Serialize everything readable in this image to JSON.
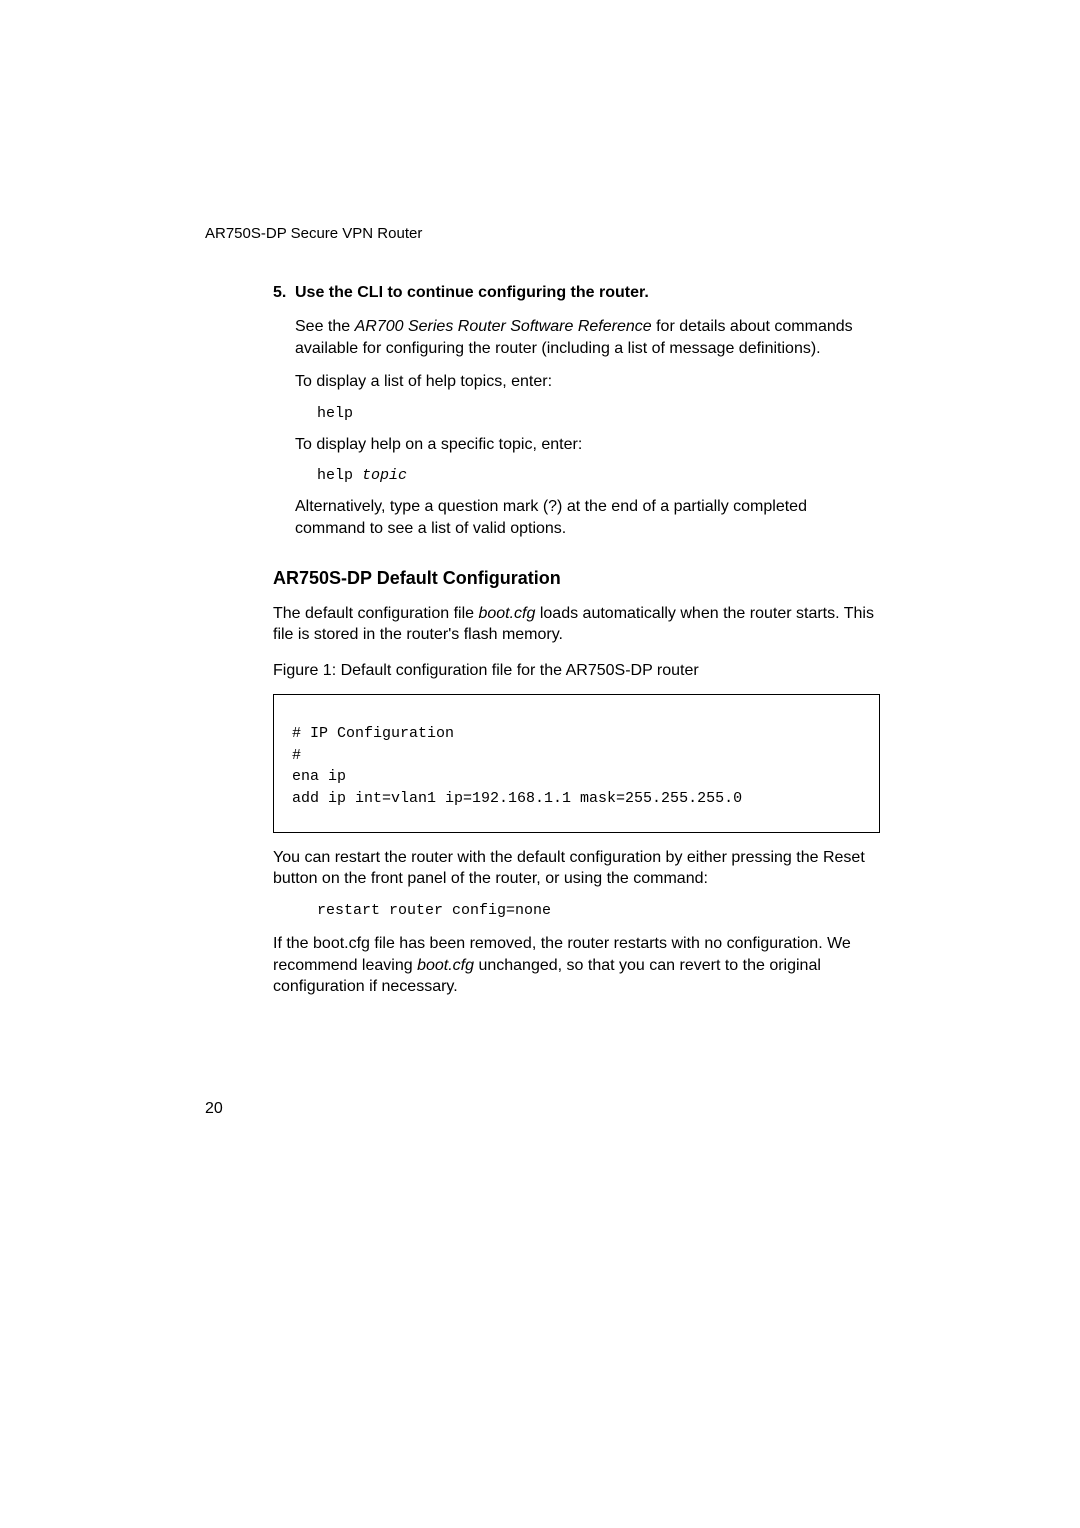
{
  "page": {
    "background_color": "#ffffff",
    "text_color": "#000000",
    "body_fontsize": 16,
    "code_fontsize": 15,
    "heading_fontsize": 18,
    "header_fontsize": 15,
    "font_family_body": "Gill Sans",
    "font_family_code": "Courier New"
  },
  "running_header": "AR750S-DP Secure VPN Router",
  "step": {
    "number": "5.",
    "title": "Use the CLI to continue configuring the router.",
    "para1_pre": "See the ",
    "para1_italic": "AR700 Series Router Software Reference",
    "para1_post": " for details about commands available for configuring the router (including a list of message definitions).",
    "para2": "To display a list of help topics, enter:",
    "code1": "help",
    "para3": "To display help on a specific topic, enter:",
    "code2_plain": "help ",
    "code2_italic": "topic",
    "para4": "Alternatively, type a question mark (?) at the end of a partially completed command to see a list of valid options."
  },
  "section": {
    "heading": "AR750S-DP Default Configuration",
    "para1_pre": "The default configuration file ",
    "para1_italic": "boot.cfg",
    "para1_post": " loads automatically when the router starts. This file is stored in the router's flash memory.",
    "figure_caption": "Figure 1: Default configuration file for the AR750S-DP router",
    "figure_code": "# IP Configuration\n#\nena ip\nadd ip int=vlan1 ip=192.168.1.1 mask=255.255.255.0",
    "figure_box": {
      "border_color": "#000000",
      "border_width": 1
    },
    "para2": "You can restart the router with the default configuration by either pressing the Reset button on the front panel of the router, or using the command:",
    "code1": "restart router config=none",
    "para3_pre": "If the boot.cfg file has been removed, the router restarts with no configuration. We recommend leaving ",
    "para3_italic": "boot.cfg",
    "para3_post": " unchanged, so that you can revert to the original configuration if necessary."
  },
  "page_number": "20"
}
